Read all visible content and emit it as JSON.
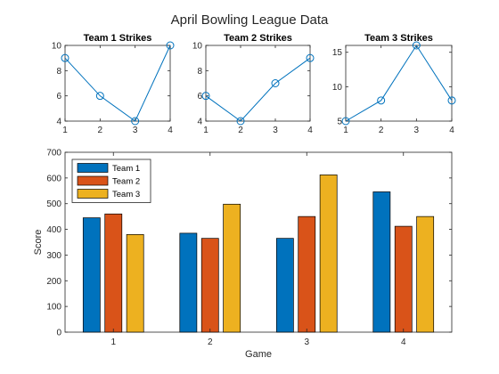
{
  "figure": {
    "title": "April Bowling League Data"
  },
  "colors": {
    "team1": "#0072BD",
    "team2": "#D95319",
    "team3": "#EDB120",
    "axis": "#262626",
    "bar_edge": "#000000"
  },
  "chart_data": [
    {
      "type": "line",
      "title": "Team 1 Strikes",
      "xlabel": "",
      "ylabel": "",
      "x": [
        1,
        2,
        3,
        4
      ],
      "xticks": [
        "1",
        "2",
        "3",
        "4"
      ],
      "xlim": [
        1,
        4
      ],
      "ylim": [
        4,
        10
      ],
      "yticks": [
        "4",
        "6",
        "8",
        "10"
      ],
      "ytick_values": [
        4,
        6,
        8,
        10
      ],
      "marker": "circle",
      "grid": false,
      "series": [
        {
          "values": [
            9,
            6,
            4,
            10
          ],
          "color": "#0072BD"
        }
      ]
    },
    {
      "type": "line",
      "title": "Team 2 Strikes",
      "xlabel": "",
      "ylabel": "",
      "x": [
        1,
        2,
        3,
        4
      ],
      "xticks": [
        "1",
        "2",
        "3",
        "4"
      ],
      "xlim": [
        1,
        4
      ],
      "ylim": [
        4,
        10
      ],
      "yticks": [
        "4",
        "6",
        "8",
        "10"
      ],
      "ytick_values": [
        4,
        6,
        8,
        10
      ],
      "marker": "circle",
      "grid": false,
      "series": [
        {
          "values": [
            6,
            4,
            7,
            9
          ],
          "color": "#0072BD"
        }
      ]
    },
    {
      "type": "line",
      "title": "Team 3 Strikes",
      "xlabel": "",
      "ylabel": "",
      "x": [
        1,
        2,
        3,
        4
      ],
      "xticks": [
        "1",
        "2",
        "3",
        "4"
      ],
      "xlim": [
        1,
        4
      ],
      "ylim": [
        5,
        16
      ],
      "yticks": [
        "5",
        "10",
        "15"
      ],
      "ytick_values": [
        5,
        10,
        15
      ],
      "marker": "circle",
      "grid": false,
      "series": [
        {
          "values": [
            5,
            8,
            16,
            8
          ],
          "color": "#0072BD"
        }
      ]
    },
    {
      "type": "bar",
      "title": "",
      "xlabel": "Game",
      "ylabel": "Score",
      "categories": [
        "1",
        "2",
        "3",
        "4"
      ],
      "xlim": [
        0.5,
        4.5
      ],
      "ylim": [
        0,
        700
      ],
      "yticks": [
        "0",
        "100",
        "200",
        "300",
        "400",
        "500",
        "600",
        "700"
      ],
      "ytick_values": [
        0,
        100,
        200,
        300,
        400,
        500,
        600,
        700
      ],
      "grid": false,
      "legend": "top-left",
      "series": [
        {
          "name": "Team 1",
          "values": [
            445,
            385,
            365,
            546
          ],
          "color": "#0072BD"
        },
        {
          "name": "Team 2",
          "values": [
            460,
            365,
            450,
            412
          ],
          "color": "#D95319"
        },
        {
          "name": "Team 3",
          "values": [
            380,
            498,
            612,
            450
          ],
          "color": "#EDB120"
        }
      ]
    }
  ]
}
